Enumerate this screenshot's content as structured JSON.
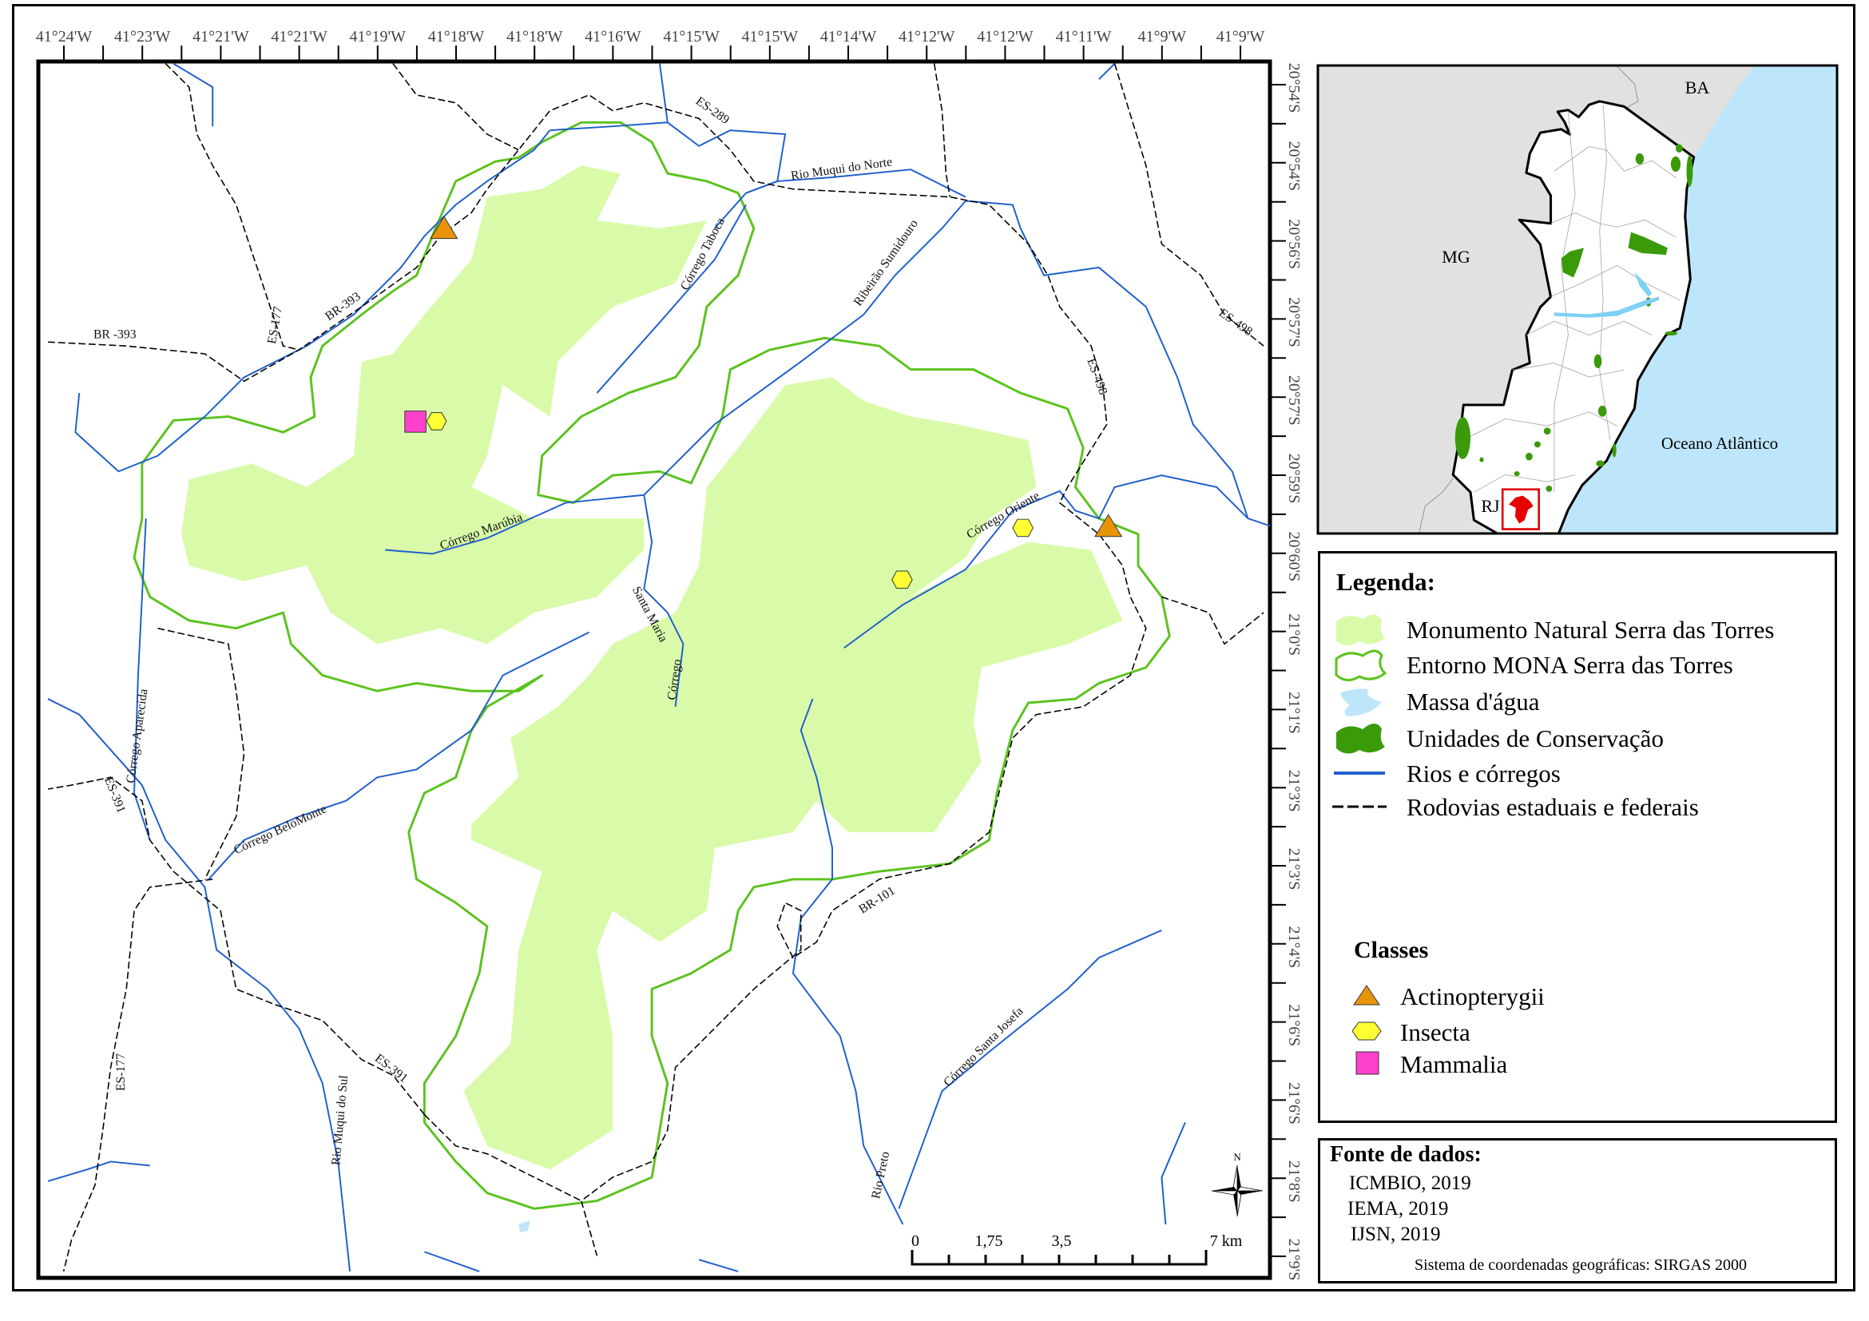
{
  "axes": {
    "top_labels": [
      "41°24'W",
      "41°23'W",
      "41°21'W",
      "41°21'W",
      "41°19'W",
      "41°18'W",
      "41°18'W",
      "41°16'W",
      "41°15'W",
      "41°15'W",
      "41°14'W",
      "41°12'W",
      "41°12'W",
      "41°11'W",
      "41°9'W",
      "41°9'W"
    ],
    "right_labels": [
      "20°54'S",
      "20°54'S",
      "20°56'S",
      "20°57'S",
      "20°57'S",
      "20°59'S",
      "20°60'S",
      "21°0'S",
      "21°1'S",
      "21°3'S",
      "21°3'S",
      "21°4'S",
      "21°6'S",
      "21°6'S",
      "21°8'S",
      "21°9'S"
    ]
  },
  "map": {
    "labels": {
      "es289": "ES-289",
      "muqui_norte": "Rio Muqui do Norte",
      "taboca": "Córrego Taboca",
      "sumidouro": "Ribeirão  Sumidouro",
      "br393a": "BR-393",
      "es177a": "ES-177",
      "br393b": "BR -393",
      "es498a": "ES-498",
      "es498b": "ES-498",
      "marubia": "Córrego Marúbia",
      "oriente": "Córrego Oriente",
      "santa_maria": "Santa Maria",
      "corrego_sm": "Córrego",
      "aparecida": "Córrego Aparecida",
      "es391a": "ES-391",
      "belo_monte": "Córrego BeloMonte",
      "br101": "BR-101",
      "es177b": "ES-177",
      "muqui_sul": "Rio Muqui do Sul",
      "es391b": "ES-391",
      "santa_josefa": "Córrego Santa Josefa",
      "rio_preto": "Rio Preto"
    },
    "scale_bar": {
      "labels": [
        "0",
        "1,75",
        "3,5",
        "7 km"
      ]
    },
    "north_label": "N",
    "colors": {
      "mona_fill": "#d9fba9",
      "buffer_stroke": "#5cc21f",
      "river": "#1f5fcc",
      "road": "#000000",
      "actinopterygii": "#e8940a",
      "insecta": "#ffff33",
      "mammalia": "#ff40cc"
    }
  },
  "inset": {
    "labels": {
      "ba": "BA",
      "mg": "MG",
      "rj": "RJ",
      "ocean": "Oceano Atlântico"
    },
    "colors": {
      "land": "#e1e1e1",
      "ocean": "#bee6fa",
      "state": "#ffffff",
      "uc": "#3a9a0a",
      "highlight": "#e60000"
    }
  },
  "legend": {
    "title": "Legenda:",
    "items": [
      {
        "label": "Monumento Natural Serra das Torres",
        "icon": "light-green-polygon"
      },
      {
        "label": "Entorno MONA Serra das Torres",
        "icon": "green-outline-polygon"
      },
      {
        "label": "Massa d'água",
        "icon": "light-blue-polygon"
      },
      {
        "label": "Unidades de Conservação",
        "icon": "dark-green-polygon"
      },
      {
        "label": "Rios e córregos",
        "icon": "blue-line"
      },
      {
        "label": "Rodovias estaduais e federais",
        "icon": "black-dashed-line"
      }
    ],
    "classes_title": "Classes",
    "classes": [
      {
        "label": "Actinopterygii",
        "icon": "orange-triangle"
      },
      {
        "label": "Insecta",
        "icon": "yellow-hexagon"
      },
      {
        "label": "Mammalia",
        "icon": "magenta-square"
      }
    ]
  },
  "sources": {
    "title": "Fonte de dados:",
    "items": [
      "ICMBIO, 2019",
      "IEMA, 2019",
      "IJSN, 2019"
    ],
    "crs": "Sistema de coordenadas geográficas: SIRGAS 2000"
  }
}
